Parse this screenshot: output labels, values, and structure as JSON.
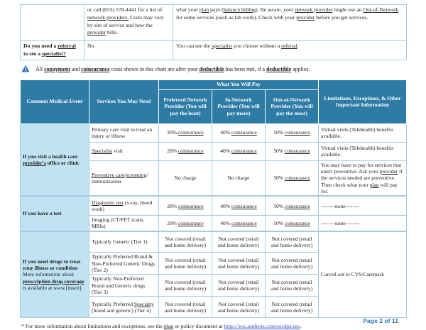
{
  "colors": {
    "header_blue": "#2e7ca6",
    "group_blue": "#bfe3f2",
    "border_blue": "#a6cbe0",
    "link_blue": "#3355c0",
    "page_blue": "#2e74b5"
  },
  "top_table": {
    "rows": [
      {
        "col1": [],
        "col2": [
          {
            "t": "or call (833) 578-4441 for a list of "
          },
          {
            "t": "network providers.",
            "u": 1
          },
          {
            "t": " Costs may vary by site of service and how the "
          },
          {
            "t": "provider",
            "u": 1
          },
          {
            "t": " bills."
          }
        ],
        "col3": [
          {
            "t": "what your "
          },
          {
            "t": "plan",
            "u": 1
          },
          {
            "t": " pays ("
          },
          {
            "t": "balance billing",
            "u": 1
          },
          {
            "t": "). Be aware, your "
          },
          {
            "t": "network provider",
            "u": 1
          },
          {
            "t": " might use an "
          },
          {
            "t": "Out-of-Network",
            "u": 1
          },
          {
            "t": " for some services (such as lab work). Check with your "
          },
          {
            "t": "provider",
            "u": 1
          },
          {
            "t": " before you get services."
          }
        ]
      },
      {
        "col1": [
          {
            "t": "Do you need a ",
            "b": 1
          },
          {
            "t": "referral",
            "b": 1,
            "u": 1
          },
          {
            "t": " to see a ",
            "b": 1
          },
          {
            "t": "specialist?",
            "b": 1,
            "u": 1
          }
        ],
        "col2": [
          {
            "t": "No."
          }
        ],
        "col3": [
          {
            "t": "You can see the "
          },
          {
            "t": "specialist",
            "u": 1
          },
          {
            "t": " you choose without a "
          },
          {
            "t": "referral",
            "u": 1
          },
          {
            "t": "."
          }
        ]
      }
    ]
  },
  "notice": [
    {
      "t": "All "
    },
    {
      "t": "copayment",
      "b": 1,
      "u": 1
    },
    {
      "t": " and "
    },
    {
      "t": "coinsurance",
      "b": 1,
      "u": 1
    },
    {
      "t": " costs shown in this chart are after your "
    },
    {
      "t": "deductible",
      "b": 1,
      "u": 1
    },
    {
      "t": " has been met, if a "
    },
    {
      "t": "deductible",
      "b": 1,
      "u": 1
    },
    {
      "t": " applies."
    }
  ],
  "main_table": {
    "header": {
      "col1": "Common Medical Event",
      "col2": "Services You May Need",
      "pay_banner": "What You Will Pay",
      "preferred": "Preferred Network Provider (You will pay the least)",
      "in_network": "In-Network Provider (You will pay more)",
      "out_network": "Out-of-Network Provider (You will pay the most)",
      "limitations": "Limitations, Exceptions, & Other Important Information"
    },
    "groups": [
      {
        "label": [
          {
            "t": "If you visit a health care ",
            "b": 1
          },
          {
            "t": "provider's",
            "b": 1,
            "u": 1
          },
          {
            "t": " office or clinic",
            "b": 1
          }
        ],
        "rows": [
          {
            "service": [
              {
                "t": "Primary care visit to treat an injury or illness"
              }
            ],
            "preferred": [
              {
                "t": "20% "
              },
              {
                "t": "coinsurance",
                "u": 1
              }
            ],
            "in_network": [
              {
                "t": "40% "
              },
              {
                "t": "coinsurance",
                "u": 1
              }
            ],
            "out_network": [
              {
                "t": "50% "
              },
              {
                "t": "coinsurance",
                "u": 1
              }
            ],
            "limitations": [
              {
                "t": "Virtual visits (Telehealth) benefits available."
              }
            ]
          },
          {
            "service": [
              {
                "t": "Specialist",
                "u": 1
              },
              {
                "t": " visit"
              }
            ],
            "preferred": [
              {
                "t": "20% "
              },
              {
                "t": "coinsurance",
                "u": 1
              }
            ],
            "in_network": [
              {
                "t": "40% "
              },
              {
                "t": "coinsurance",
                "u": 1
              }
            ],
            "out_network": [
              {
                "t": "50% "
              },
              {
                "t": "coinsurance",
                "u": 1
              }
            ],
            "limitations": [
              {
                "t": "Virtual visits (Telehealth) benefits available."
              }
            ]
          },
          {
            "service": [
              {
                "t": "Preventive care",
                "u": 1
              },
              {
                "t": "/"
              },
              {
                "t": "screening",
                "u": 1
              },
              {
                "t": "/ immunization"
              }
            ],
            "preferred": [
              {
                "t": "No charge"
              }
            ],
            "in_network": [
              {
                "t": "No charge"
              }
            ],
            "out_network": [
              {
                "t": "50% "
              },
              {
                "t": "coinsurance",
                "u": 1
              }
            ],
            "limitations": [
              {
                "t": "You may have to pay for services that aren't preventive. Ask your "
              },
              {
                "t": "provider",
                "u": 1
              },
              {
                "t": " if the services needed are preventive. Then check what your "
              },
              {
                "t": "plan",
                "u": 1
              },
              {
                "t": " will pay for."
              }
            ]
          }
        ]
      },
      {
        "label": [
          {
            "t": "If you have a test",
            "b": 1
          }
        ],
        "rows": [
          {
            "service": [
              {
                "t": "Diagnostic test",
                "u": 1
              },
              {
                "t": " (x-ray, blood work)"
              }
            ],
            "preferred": [
              {
                "t": "20% "
              },
              {
                "t": "coinsurance",
                "u": 1
              }
            ],
            "in_network": [
              {
                "t": "40% "
              },
              {
                "t": "coinsurance",
                "u": 1
              }
            ],
            "out_network": [
              {
                "t": "50% "
              },
              {
                "t": "coinsurance",
                "u": 1
              }
            ],
            "limitations": [
              {
                "t": "--------none--------"
              }
            ]
          },
          {
            "service": [
              {
                "t": "Imaging (CT/PET scans, MRIs)"
              }
            ],
            "preferred": [
              {
                "t": "20% "
              },
              {
                "t": "coinsurance",
                "u": 1
              }
            ],
            "in_network": [
              {
                "t": "40% "
              },
              {
                "t": "coinsurance",
                "u": 1
              }
            ],
            "out_network": [
              {
                "t": "50% "
              },
              {
                "t": "coinsurance",
                "u": 1
              }
            ],
            "limitations": [
              {
                "t": "--------none--------"
              }
            ]
          }
        ]
      },
      {
        "label": [
          {
            "t": "If you need drugs to treat your illness or condition",
            "b": 1
          },
          {
            "br": 1
          },
          {
            "t": "More information about "
          },
          {
            "t": "prescription drug coverage",
            "b": 1,
            "u": 1
          },
          {
            "t": " is available at www.[insert]."
          }
        ],
        "shared_limitations": [
          {
            "t": "Carved out to CVS/Caremark"
          }
        ],
        "rows": [
          {
            "service": [
              {
                "t": "Typically Generic (Tier 1)"
              }
            ],
            "preferred": [
              {
                "t": "Not covered (retail and home delivery)"
              }
            ],
            "in_network": [
              {
                "t": "Not covered (retail and home delivery)"
              }
            ],
            "out_network": [
              {
                "t": "Not covered (retail and home delivery)"
              }
            ]
          },
          {
            "service": [
              {
                "t": "Typically Preferred Brand & Non-Preferred Generic Drugs (Tier 2)"
              }
            ],
            "preferred": [
              {
                "t": "Not covered (retail and home delivery)"
              }
            ],
            "in_network": [
              {
                "t": "Not covered (retail and home delivery)"
              }
            ],
            "out_network": [
              {
                "t": "Not covered (retail and home delivery)"
              }
            ]
          },
          {
            "service": [
              {
                "t": "Typically Non-Preferred Brand and Generic drugs (Tier 3)"
              }
            ],
            "preferred": [
              {
                "t": "Not covered (retail and home delivery)"
              }
            ],
            "in_network": [
              {
                "t": "Not covered (retail and home delivery)"
              }
            ],
            "out_network": [
              {
                "t": "Not covered (retail and home delivery)"
              }
            ]
          },
          {
            "service": [
              {
                "t": "Typically Preferred "
              },
              {
                "t": "Specialty",
                "u": 1
              },
              {
                "t": " (brand and generic) (Tier 4)"
              }
            ],
            "preferred": [
              {
                "t": "Not covered (retail and home delivery)"
              }
            ],
            "in_network": [
              {
                "t": "Not covered (retail and home delivery)"
              }
            ],
            "out_network": [
              {
                "t": "Not covered (retail and home delivery)"
              }
            ]
          }
        ]
      }
    ]
  },
  "footnote": [
    {
      "t": "* For more information about limitations and exceptions, see the "
    },
    {
      "t": "plan",
      "u": 1
    },
    {
      "t": " or policy document at "
    },
    {
      "t": "https://eoc.anthem.com/eocdps/aso",
      "link": 1
    },
    {
      "t": "."
    }
  ],
  "page_label": "Page 2 of 11"
}
